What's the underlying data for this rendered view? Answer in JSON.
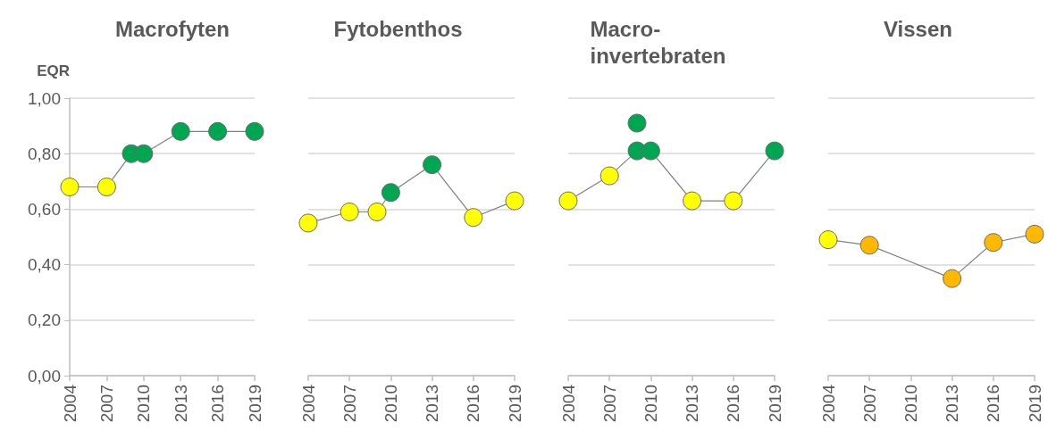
{
  "chart_data": [
    {
      "type": "line",
      "title": "Macrofyten",
      "ylabel": "EQR",
      "x": [
        2004,
        2007,
        2009,
        2010,
        2013,
        2016,
        2019
      ],
      "xlim": [
        2004,
        2019
      ],
      "xticks": [
        2004,
        2007,
        2010,
        2013,
        2016,
        2019
      ],
      "ylim": [
        0,
        1
      ],
      "yticks": [
        {
          "value": 0,
          "label": "0,00"
        },
        {
          "value": 0.2,
          "label": "0,20"
        },
        {
          "value": 0.4,
          "label": "0,40"
        },
        {
          "value": 0.6,
          "label": "0,60"
        },
        {
          "value": 0.8,
          "label": "0,80"
        },
        {
          "value": 1,
          "label": "1,00"
        }
      ],
      "grid": "y",
      "marker": "circle",
      "line_style": "solid",
      "series": [
        {
          "color": "#808080",
          "colors": [
            "#ffff00",
            "#ffff00",
            "#00a651",
            "#00a651",
            "#00a651",
            "#00a651",
            "#00a651"
          ],
          "values": [
            0.68,
            0.68,
            0.8,
            0.8,
            0.88,
            0.88,
            0.88
          ]
        }
      ]
    },
    {
      "type": "line",
      "title": "Fytobenthos",
      "x": [
        2004,
        2007,
        2009,
        2010,
        2013,
        2016,
        2019
      ],
      "xlim": [
        2004,
        2019
      ],
      "xticks": [
        2004,
        2007,
        2010,
        2013,
        2016,
        2019
      ],
      "ylim": [
        0,
        1
      ],
      "yticks": [
        0,
        0.2,
        0.4,
        0.6,
        0.8,
        1
      ],
      "tick_labels": "x",
      "grid": "y",
      "marker": "circle",
      "line_style": "solid",
      "series": [
        {
          "color": "#808080",
          "colors": [
            "#ffff00",
            "#ffff00",
            "#ffff00",
            "#00a651",
            "#00a651",
            "#ffff00",
            "#ffff00"
          ],
          "values": [
            0.55,
            0.59,
            0.59,
            0.66,
            0.76,
            0.57,
            0.63
          ]
        }
      ]
    },
    {
      "type": "line",
      "title": "Macro-\ninvertebraten",
      "x": [
        2004,
        2007,
        2009,
        2010,
        2013,
        2016,
        2019
      ],
      "xlim": [
        2004,
        2019
      ],
      "xticks": [
        2004,
        2007,
        2010,
        2013,
        2016,
        2019
      ],
      "ylim": [
        0,
        1
      ],
      "yticks": [
        0,
        0.2,
        0.4,
        0.6,
        0.8,
        1
      ],
      "tick_labels": "x",
      "grid": "y",
      "marker": "circle",
      "line_style": "solid",
      "series": [
        {
          "color": "#808080",
          "colors": [
            "#ffff00",
            "#ffff00",
            "#00a651",
            "#00a651",
            "#ffff00",
            "#ffff00",
            "#00a651"
          ],
          "values": [
            0.63,
            0.72,
            0.81,
            0.81,
            0.63,
            0.63,
            0.81
          ]
        },
        {
          "type": "scatter",
          "x": [
            2009
          ],
          "color": "#00a651",
          "values": [
            0.91
          ]
        }
      ]
    },
    {
      "type": "line",
      "title": "Vissen",
      "x": [
        2004,
        2007,
        2013,
        2016,
        2019
      ],
      "xlim": [
        2004,
        2019
      ],
      "xticks": [
        2004,
        2007,
        2010,
        2013,
        2016,
        2019
      ],
      "ylim": [
        0,
        1
      ],
      "yticks": [
        0,
        0.2,
        0.4,
        0.6,
        0.8,
        1
      ],
      "tick_labels": "x",
      "grid": "y",
      "marker": "circle",
      "line_style": "solid",
      "series": [
        {
          "color": "#808080",
          "colors": [
            "#ffff00",
            "#ffb800",
            "#ffb800",
            "#ffb800",
            "#ffb800"
          ],
          "values": [
            0.49,
            0.47,
            0.35,
            0.48,
            0.51
          ]
        }
      ]
    }
  ]
}
